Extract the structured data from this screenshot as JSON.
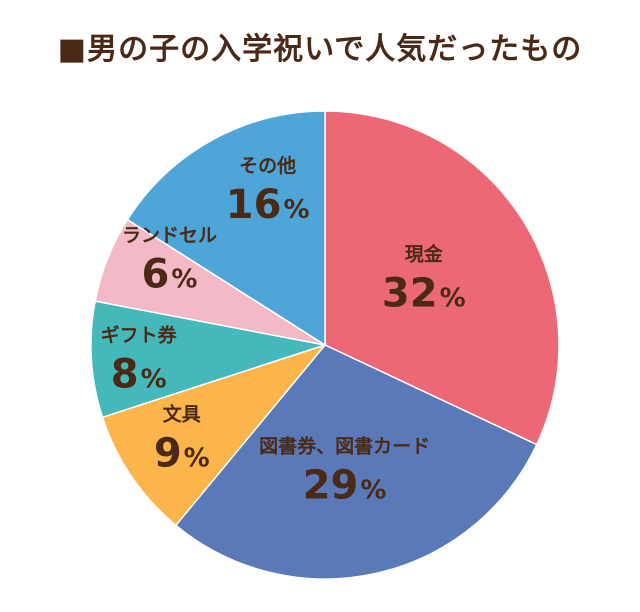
{
  "title": "■男の子の入学祝いで人気だったもの",
  "chart_data": {
    "type": "pie",
    "title": "■男の子の入学祝いで人気だったもの",
    "start": "12 o'clock, clockwise",
    "slices": [
      {
        "label": "現金",
        "value": 32,
        "display": "32",
        "unit": "%",
        "color": "#ec6877"
      },
      {
        "label": "図書券、図書カード",
        "value": 29,
        "display": "29",
        "unit": "%",
        "color": "#5a79b8"
      },
      {
        "label": "文具",
        "value": 9,
        "display": "9",
        "unit": "%",
        "color": "#fbb54a"
      },
      {
        "label": "ギフト券",
        "value": 8,
        "display": "8",
        "unit": "%",
        "color": "#45b8bc"
      },
      {
        "label": "ランドセル",
        "value": 6,
        "display": "6",
        "unit": "%",
        "color": "#f3b9c7"
      },
      {
        "label": "その他",
        "value": 16,
        "display": "16",
        "unit": "%",
        "color": "#4ea5d8"
      }
    ]
  }
}
